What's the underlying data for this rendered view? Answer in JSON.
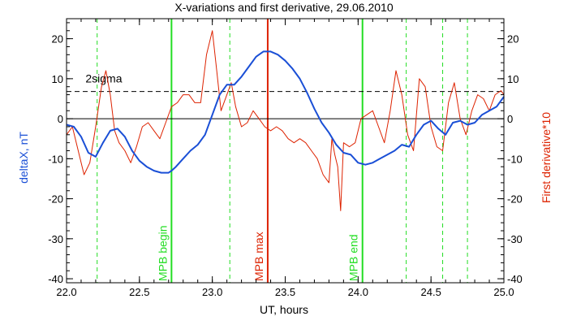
{
  "chart_data": {
    "type": "line",
    "title": "X-variations and first derivative, 29.06.2010",
    "xlabel": "UT, hours",
    "ylabel_left": "deltaX, nT",
    "ylabel_right": "First derivative*10",
    "xlim": [
      22.0,
      25.0
    ],
    "ylim": [
      -41,
      25
    ],
    "x_ticks": [
      22.0,
      22.5,
      23.0,
      23.5,
      24.0,
      24.5,
      25.0
    ],
    "x_tick_labels": [
      "22.0",
      "22.5",
      "23.0",
      "23.5",
      "24.0",
      "24.5",
      "25.0"
    ],
    "y_ticks": [
      20,
      10,
      0,
      -10,
      -20,
      -30,
      -40
    ],
    "y_tick_labels": [
      "20",
      "10",
      "0",
      "-10",
      "-20",
      "-30",
      "-40"
    ],
    "grid": false,
    "zero_line": 0,
    "sigma_line": {
      "value": 6.8,
      "label": "2sigma",
      "style": "dashed"
    },
    "markers": [
      {
        "x": 22.72,
        "label": "MPB begin",
        "color": "#22dd22"
      },
      {
        "x": 23.38,
        "label": "MPB max",
        "color": "#dd2200"
      },
      {
        "x": 24.03,
        "label": "MPB end",
        "color": "#22dd22"
      }
    ],
    "dashed_markers": [
      22.21,
      23.12,
      24.33,
      24.58,
      24.75
    ],
    "series": [
      {
        "name": "deltaX, nT",
        "color": "#1a4fd6",
        "x": [
          22.0,
          22.05,
          22.1,
          22.15,
          22.2,
          22.25,
          22.3,
          22.35,
          22.4,
          22.45,
          22.5,
          22.55,
          22.6,
          22.65,
          22.7,
          22.72,
          22.75,
          22.8,
          22.85,
          22.9,
          22.95,
          23.0,
          23.05,
          23.1,
          23.15,
          23.2,
          23.25,
          23.3,
          23.35,
          23.4,
          23.45,
          23.5,
          23.55,
          23.6,
          23.65,
          23.7,
          23.75,
          23.8,
          23.85,
          23.9,
          23.95,
          24.0,
          24.05,
          24.1,
          24.15,
          24.2,
          24.25,
          24.3,
          24.35,
          24.4,
          24.45,
          24.5,
          24.55,
          24.6,
          24.65,
          24.7,
          24.75,
          24.8,
          24.85,
          24.9,
          24.95,
          25.0
        ],
        "values": [
          -1.5,
          -2.0,
          -4.5,
          -8.5,
          -9.5,
          -6.0,
          -3.0,
          -2.5,
          -4.5,
          -8.0,
          -10.5,
          -12.0,
          -13.0,
          -13.5,
          -13.5,
          -13.0,
          -12.0,
          -10.0,
          -8.0,
          -6.5,
          -4.0,
          1.0,
          6.0,
          8.5,
          8.5,
          10.5,
          13.0,
          15.5,
          16.8,
          16.8,
          16.0,
          14.5,
          12.5,
          10.0,
          6.5,
          2.5,
          -1.0,
          -3.5,
          -6.5,
          -8.5,
          -9.0,
          -11.0,
          -11.5,
          -11.0,
          -10.0,
          -9.0,
          -8.0,
          -6.5,
          -7.0,
          -4.0,
          -1.5,
          -0.5,
          -2.5,
          -4.0,
          -1.0,
          -0.5,
          -1.5,
          -1.0,
          1.0,
          2.0,
          3.0,
          5.5
        ]
      },
      {
        "name": "First derivative*10",
        "color": "#dd2200",
        "x": [
          22.0,
          22.04,
          22.08,
          22.12,
          22.16,
          22.2,
          22.24,
          22.27,
          22.3,
          22.33,
          22.36,
          22.4,
          22.44,
          22.48,
          22.52,
          22.56,
          22.6,
          22.64,
          22.68,
          22.72,
          22.76,
          22.8,
          22.84,
          22.88,
          22.92,
          22.96,
          23.0,
          23.03,
          23.06,
          23.1,
          23.13,
          23.16,
          23.2,
          23.24,
          23.28,
          23.32,
          23.36,
          23.4,
          23.44,
          23.48,
          23.52,
          23.56,
          23.6,
          23.64,
          23.68,
          23.72,
          23.76,
          23.8,
          23.82,
          23.84,
          23.86,
          23.88,
          23.9,
          23.94,
          23.98,
          24.02,
          24.06,
          24.1,
          24.14,
          24.18,
          24.22,
          24.26,
          24.3,
          24.34,
          24.38,
          24.42,
          24.46,
          24.5,
          24.54,
          24.58,
          24.62,
          24.66,
          24.7,
          24.74,
          24.78,
          24.82,
          24.86,
          24.9,
          24.94,
          24.98,
          25.0
        ],
        "values": [
          -4.0,
          -2.0,
          -8.0,
          -14.0,
          -11.0,
          -2.0,
          8.0,
          12.0,
          6.0,
          -3.0,
          -6.0,
          -8.0,
          -11.0,
          -7.0,
          -2.0,
          -1.0,
          -3.0,
          -5.0,
          -1.0,
          3.0,
          4.0,
          6.0,
          6.0,
          4.0,
          4.0,
          16.0,
          22.0,
          12.0,
          2.0,
          6.0,
          9.0,
          3.0,
          -2.0,
          -1.0,
          2.0,
          0.0,
          -2.0,
          -3.0,
          -2.0,
          -3.0,
          -5.0,
          -6.0,
          -5.0,
          -6.0,
          -8.0,
          -10.0,
          -14.0,
          -16.0,
          -5.0,
          -9.0,
          -12.0,
          -23.0,
          -6.0,
          -7.0,
          -6.0,
          0.0,
          1.0,
          2.0,
          -2.0,
          -6.0,
          2.0,
          12.0,
          6.0,
          -4.0,
          -8.0,
          10.0,
          8.0,
          -2.0,
          -7.0,
          -8.0,
          4.0,
          9.0,
          0.0,
          -4.0,
          2.0,
          6.0,
          5.0,
          2.0,
          6.0,
          7.0,
          6.0
        ]
      }
    ]
  }
}
